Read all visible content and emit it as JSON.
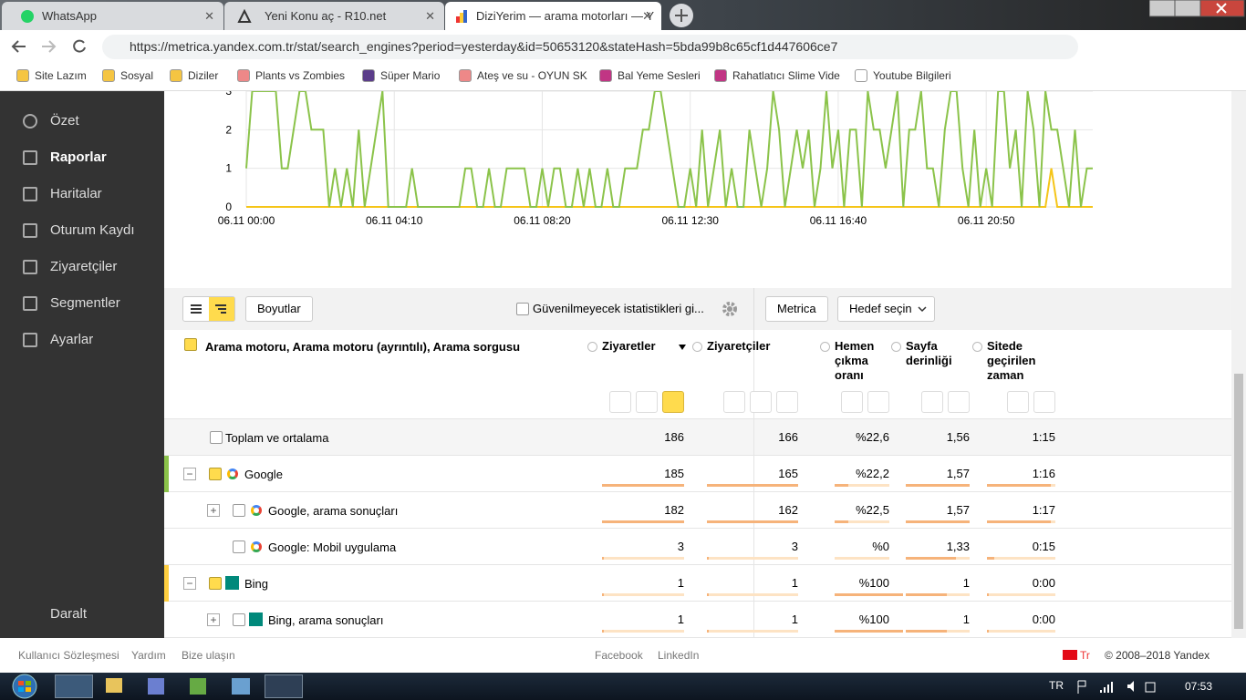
{
  "browser": {
    "tabs": [
      "WhatsApp",
      "Yeni Konu aç - R10.net",
      "DiziYerim — arama motorları — Y"
    ],
    "url": "https://metrica.yandex.com.tr/stat/search_engines?period=yesterday&id=50653120&stateHash=5bda99b8c65cf1d447606ce7",
    "bookmarks": [
      "Site Lazım",
      "Sosyal",
      "Diziler",
      "Plants vs Zombies",
      "Süper Mario",
      "Ateş ve su - OYUN SK",
      "Bal Yeme Sesleri",
      "Rahatlatıcı Slime Vide",
      "Youtube Bilgileri"
    ]
  },
  "sidebar": {
    "items": [
      "Özet",
      "Raporlar",
      "Haritalar",
      "Oturum Kaydı",
      "Ziyaretçiler",
      "Segmentler",
      "Ayarlar"
    ],
    "collapse": "Daralt"
  },
  "chart_data": {
    "type": "line",
    "categories": [
      "06.11 00:00",
      null,
      null,
      null,
      null,
      null,
      null,
      null,
      null,
      null,
      null,
      null,
      null,
      null,
      null,
      null,
      null,
      null,
      null,
      null,
      null,
      null,
      null,
      null,
      null,
      "06.11 04:10",
      null,
      null,
      null,
      null,
      null,
      null,
      null,
      null,
      null,
      null,
      null,
      null,
      null,
      null,
      null,
      null,
      null,
      null,
      null,
      null,
      null,
      null,
      null,
      null,
      "06.11 08:20",
      null,
      null,
      null,
      null,
      null,
      null,
      null,
      null,
      null,
      null,
      null,
      null,
      null,
      null,
      null,
      null,
      null,
      null,
      null,
      null,
      null,
      null,
      null,
      null,
      "06.11 12:30",
      null,
      null,
      null,
      null,
      null,
      null,
      null,
      null,
      null,
      null,
      null,
      null,
      null,
      null,
      null,
      null,
      null,
      null,
      null,
      null,
      null,
      null,
      null,
      null,
      "06.11 16:40",
      null,
      null,
      null,
      null,
      null,
      null,
      null,
      null,
      null,
      null,
      null,
      null,
      null,
      null,
      null,
      null,
      null,
      null,
      null,
      null,
      null,
      null,
      null,
      null,
      "06.11 20:50",
      null,
      null,
      null,
      null,
      null,
      null,
      null,
      null,
      null,
      null,
      null,
      null,
      null,
      null,
      null,
      null,
      null,
      null
    ],
    "series": [
      {
        "color": "#8bc34a",
        "values": [
          1,
          3,
          3,
          3,
          3,
          3,
          1,
          1,
          2,
          3,
          3,
          2,
          2,
          2,
          0,
          1,
          0,
          1,
          0,
          2,
          0,
          1,
          2,
          3,
          0,
          0,
          0,
          0,
          1,
          0,
          0,
          0,
          0,
          0,
          0,
          0,
          0,
          1,
          1,
          0,
          0,
          1,
          0,
          0,
          1,
          1,
          1,
          1,
          0,
          0,
          1,
          0,
          1,
          1,
          0,
          0,
          1,
          0,
          1,
          0,
          0,
          1,
          0,
          0,
          1,
          1,
          1,
          2,
          2,
          3,
          3,
          2,
          1,
          0,
          0,
          1,
          0,
          2,
          0,
          1,
          2,
          0,
          1,
          0,
          0,
          2,
          1,
          0,
          1,
          3,
          2,
          0,
          1,
          2,
          1,
          2,
          0,
          1,
          3,
          1,
          2,
          0,
          2,
          2,
          0,
          3,
          2,
          2,
          1,
          2,
          3,
          0,
          2,
          2,
          3,
          1,
          1,
          0,
          2,
          3,
          3,
          1,
          0,
          2,
          0,
          1,
          0,
          3,
          3,
          1,
          2,
          0,
          3,
          2,
          0,
          3,
          2,
          2,
          1,
          0,
          2,
          0,
          1,
          1
        ]
      },
      {
        "color": "#f5c518",
        "values": [
          0,
          0,
          0,
          0,
          0,
          0,
          0,
          0,
          0,
          0,
          0,
          0,
          0,
          0,
          0,
          0,
          0,
          0,
          0,
          0,
          0,
          0,
          0,
          0,
          0,
          0,
          0,
          0,
          0,
          0,
          0,
          0,
          0,
          0,
          0,
          0,
          0,
          0,
          0,
          0,
          0,
          0,
          0,
          0,
          0,
          0,
          0,
          0,
          0,
          0,
          0,
          0,
          0,
          0,
          0,
          0,
          0,
          0,
          0,
          0,
          0,
          0,
          0,
          0,
          0,
          0,
          0,
          0,
          0,
          0,
          0,
          0,
          0,
          0,
          0,
          0,
          0,
          0,
          0,
          0,
          0,
          0,
          0,
          0,
          0,
          0,
          0,
          0,
          0,
          0,
          0,
          0,
          0,
          0,
          0,
          0,
          0,
          0,
          0,
          0,
          0,
          0,
          0,
          0,
          0,
          0,
          0,
          0,
          0,
          0,
          0,
          0,
          0,
          0,
          0,
          0,
          0,
          0,
          0,
          0,
          0,
          0,
          0,
          0,
          0,
          0,
          0,
          0,
          0,
          0,
          0,
          0,
          0,
          0,
          0,
          0,
          1,
          0,
          0,
          0,
          0,
          0,
          0,
          0
        ]
      }
    ],
    "ylim": [
      0,
      3
    ],
    "yticks": [
      0,
      1,
      2,
      3
    ],
    "grid": true
  },
  "toolbar": {
    "dimensions": "Boyutlar",
    "unreliable": "Güvenilmeyecek istatistikleri gi...",
    "metrica": "Metrica",
    "goal": "Hedef seçin"
  },
  "table": {
    "dimension_header": "Arama motoru, Arama motoru (ayrıntılı), Arama sorgusu",
    "columns": [
      "Ziyaretler",
      "Ziyaretçiler",
      "Hemen çıkma oranı",
      "Sayfa derinliği",
      "Sitede geçirilen zaman"
    ],
    "rows": [
      [
        "Toplam ve ortalama",
        "186",
        "166",
        "%22,6",
        "1,56",
        "1:15"
      ],
      [
        "Google",
        "185",
        "165",
        "%22,2",
        "1,57",
        "1:16"
      ],
      [
        "Google, arama sonuçları",
        "182",
        "162",
        "%22,5",
        "1,57",
        "1:17"
      ],
      [
        "Google: Mobil uygulama",
        "3",
        "3",
        "%0",
        "1,33",
        "0:15"
      ],
      [
        "Bing",
        "1",
        "1",
        "%100",
        "1",
        "0:00"
      ],
      [
        "Bing, arama sonuçları",
        "1",
        "1",
        "%100",
        "1",
        "0:00"
      ]
    ]
  },
  "footer": {
    "links": [
      "Kullanıcı Sözleşmesi",
      "Yardım",
      "Bize ulaşın"
    ],
    "social": [
      "Facebook",
      "LinkedIn"
    ],
    "lang": "Tr",
    "copyright": "© 2008–2018 Yandex"
  },
  "taskbar": {
    "lang": "TR",
    "time": "07:53"
  }
}
